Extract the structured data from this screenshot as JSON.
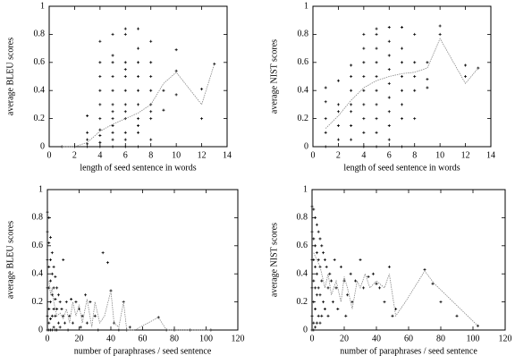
{
  "chart_data": [
    {
      "type": "scatter",
      "xlabel": "length of seed sentence in words",
      "ylabel": "average BLEU scores",
      "xlim": [
        0,
        14
      ],
      "ylim": [
        0,
        1
      ],
      "xticks": [
        0,
        2,
        4,
        6,
        8,
        10,
        12,
        14
      ],
      "yticks": [
        0,
        0.2,
        0.4,
        0.6,
        0.8,
        1
      ],
      "series": [
        {
          "type": "scatter",
          "color": "#000000",
          "x": [
            1,
            2,
            3,
            3,
            3,
            3,
            3,
            4,
            4,
            4,
            4,
            4,
            4,
            4,
            4,
            4,
            4,
            5,
            5,
            5,
            5,
            5,
            5,
            5,
            5,
            5,
            5,
            5,
            5,
            6,
            6,
            6,
            6,
            6,
            6,
            6,
            6,
            6,
            6,
            6,
            6,
            7,
            7,
            7,
            7,
            7,
            7,
            7,
            7,
            7,
            7,
            8,
            8,
            8,
            8,
            8,
            8,
            8,
            8,
            9,
            9,
            10,
            10,
            10,
            12,
            12,
            13
          ],
          "values": [
            0,
            0,
            0,
            0.02,
            0.05,
            0.1,
            0.22,
            0,
            0.03,
            0.08,
            0.12,
            0.2,
            0.3,
            0.4,
            0.5,
            0.6,
            0.75,
            0,
            0.05,
            0.1,
            0.15,
            0.2,
            0.25,
            0.3,
            0.4,
            0.5,
            0.6,
            0.65,
            0.8,
            0,
            0.05,
            0.1,
            0.2,
            0.25,
            0.3,
            0.4,
            0.5,
            0.55,
            0.6,
            0.8,
            0.84,
            0,
            0.1,
            0.15,
            0.2,
            0.3,
            0.4,
            0.5,
            0.6,
            0.7,
            0.84,
            0.05,
            0.2,
            0.25,
            0.3,
            0.4,
            0.5,
            0.6,
            0.75,
            0.4,
            0.26,
            0.37,
            0.54,
            0.69,
            0.2,
            0.41,
            0.59
          ]
        },
        {
          "type": "line",
          "color": "#888888",
          "x": [
            1,
            2,
            3,
            4,
            5,
            6,
            7,
            8,
            9,
            10,
            12,
            13
          ],
          "values": [
            0,
            0,
            0.03,
            0.11,
            0.16,
            0.2,
            0.24,
            0.3,
            0.45,
            0.53,
            0.3,
            0.59
          ]
        }
      ]
    },
    {
      "type": "scatter",
      "xlabel": "length of seed sentence in words",
      "ylabel": "average NIST scores",
      "xlim": [
        0,
        14
      ],
      "ylim": [
        0,
        1
      ],
      "xticks": [
        0,
        2,
        4,
        6,
        8,
        10,
        12,
        14
      ],
      "yticks": [
        0,
        0.2,
        0.4,
        0.6,
        0.8,
        1
      ],
      "series": [
        {
          "type": "scatter",
          "color": "#000000",
          "x": [
            1,
            1,
            1,
            1,
            1,
            2,
            2,
            2,
            2,
            2,
            3,
            3,
            3,
            3,
            3,
            3,
            3,
            4,
            4,
            4,
            4,
            4,
            4,
            4,
            4,
            4,
            5,
            5,
            5,
            5,
            5,
            5,
            5,
            5,
            5,
            5,
            6,
            6,
            6,
            6,
            6,
            6,
            6,
            6,
            6,
            7,
            7,
            7,
            7,
            7,
            7,
            7,
            7,
            8,
            8,
            8,
            8,
            8,
            9,
            9,
            9,
            10,
            10,
            12,
            12,
            13
          ],
          "values": [
            0,
            0.1,
            0.2,
            0.32,
            0.42,
            0.05,
            0.15,
            0.25,
            0.3,
            0.47,
            0.05,
            0.15,
            0.25,
            0.3,
            0.4,
            0.5,
            0.58,
            0,
            0.1,
            0.2,
            0.3,
            0.4,
            0.5,
            0.6,
            0.7,
            0.8,
            0,
            0.1,
            0.2,
            0.3,
            0.4,
            0.5,
            0.6,
            0.7,
            0.8,
            0.84,
            0.05,
            0.15,
            0.25,
            0.35,
            0.45,
            0.55,
            0.65,
            0.75,
            0.85,
            0,
            0.2,
            0.3,
            0.4,
            0.5,
            0.6,
            0.7,
            0.85,
            0.2,
            0.4,
            0.5,
            0.6,
            0.8,
            0.42,
            0.48,
            0.6,
            0.8,
            0.86,
            0.5,
            0.58,
            0.56
          ]
        },
        {
          "type": "line",
          "color": "#888888",
          "x": [
            1,
            2,
            3,
            4,
            5,
            6,
            7,
            8,
            9,
            10,
            12,
            13
          ],
          "values": [
            0.13,
            0.22,
            0.33,
            0.42,
            0.47,
            0.5,
            0.52,
            0.53,
            0.56,
            0.77,
            0.45,
            0.56
          ]
        }
      ]
    },
    {
      "type": "scatter",
      "xlabel": "number of paraphrases / seed sentence",
      "ylabel": "average BLEU scores",
      "xlim": [
        0,
        120
      ],
      "ylim": [
        0,
        1
      ],
      "xticks": [
        0,
        20,
        40,
        60,
        80,
        100,
        120
      ],
      "yticks": [
        0,
        0.2,
        0.4,
        0.6,
        0.8,
        1
      ],
      "series": [
        {
          "type": "scatter",
          "color": "#000000",
          "x": [
            0,
            0,
            0,
            0,
            0,
            0,
            1,
            1,
            1,
            1,
            1,
            1,
            1,
            2,
            2,
            2,
            2,
            2,
            2,
            3,
            3,
            3,
            3,
            3,
            4,
            4,
            4,
            4,
            5,
            5,
            5,
            5,
            6,
            6,
            6,
            7,
            7,
            8,
            8,
            9,
            10,
            10,
            11,
            12,
            13,
            14,
            15,
            16,
            18,
            20,
            21,
            22,
            24,
            25,
            27,
            30,
            32,
            35,
            38,
            40,
            42,
            45,
            48,
            50,
            52,
            70,
            75,
            80,
            90,
            103
          ],
          "values": [
            0.84,
            0.7,
            0.5,
            0.3,
            0.1,
            0,
            0.8,
            0.62,
            0.45,
            0.3,
            0.15,
            0.05,
            0,
            0.66,
            0.5,
            0.35,
            0.2,
            0.08,
            0,
            0.55,
            0.4,
            0.25,
            0.1,
            0,
            0.45,
            0.3,
            0.15,
            0.02,
            0.38,
            0.22,
            0.1,
            0,
            0.3,
            0.15,
            0,
            0.25,
            0.05,
            0.2,
            0.02,
            0.15,
            0.5,
            0.1,
            0.05,
            0.2,
            0,
            0.1,
            0.22,
            0.05,
            0.2,
            0.15,
            0.02,
            0.1,
            0.25,
            0.05,
            0.2,
            0.1,
            0,
            0.55,
            0.48,
            0.28,
            0.05,
            0,
            0.2,
            0,
            0.02,
            0.09,
            0,
            0,
            0,
            0
          ]
        },
        {
          "type": "line",
          "color": "#888888",
          "x": [
            1,
            2,
            3,
            4,
            5,
            6,
            8,
            10,
            12,
            14,
            16,
            18,
            20,
            22,
            25,
            28,
            30,
            33,
            36,
            40,
            42,
            45,
            48,
            50,
            55,
            70,
            75,
            80,
            100,
            103
          ],
          "values": [
            0.35,
            0.25,
            0.3,
            0.2,
            0.15,
            0.1,
            0.12,
            0.08,
            0.15,
            0.05,
            0.2,
            0.1,
            0.18,
            0.05,
            0.22,
            0.02,
            0.2,
            0.05,
            0.1,
            0.28,
            0.05,
            0.02,
            0.2,
            0,
            0,
            0.09,
            0,
            0,
            0,
            0
          ]
        }
      ]
    },
    {
      "type": "scatter",
      "xlabel": "number of paraphrases / seed sentence",
      "ylabel": "average NIST scores",
      "xlim": [
        0,
        120
      ],
      "ylim": [
        0,
        1
      ],
      "xticks": [
        0,
        20,
        40,
        60,
        80,
        100,
        120
      ],
      "yticks": [
        0,
        0.2,
        0.4,
        0.6,
        0.8,
        1
      ],
      "series": [
        {
          "type": "scatter",
          "color": "#000000",
          "x": [
            0,
            0,
            0,
            0,
            0,
            0,
            1,
            1,
            1,
            1,
            1,
            1,
            1,
            2,
            2,
            2,
            2,
            2,
            2,
            3,
            3,
            3,
            3,
            3,
            4,
            4,
            4,
            4,
            5,
            5,
            5,
            5,
            6,
            6,
            6,
            7,
            7,
            8,
            8,
            9,
            10,
            10,
            11,
            12,
            13,
            14,
            15,
            16,
            18,
            20,
            21,
            22,
            24,
            25,
            27,
            30,
            32,
            35,
            38,
            40,
            42,
            45,
            48,
            50,
            52,
            70,
            75,
            80,
            90,
            103
          ],
          "values": [
            0.88,
            0.7,
            0.5,
            0.3,
            0.1,
            0,
            0.86,
            0.65,
            0.5,
            0.35,
            0.2,
            0.05,
            0,
            0.8,
            0.6,
            0.45,
            0.3,
            0.15,
            0.02,
            0.75,
            0.55,
            0.4,
            0.25,
            0.05,
            0.7,
            0.5,
            0.3,
            0.1,
            0.65,
            0.45,
            0.25,
            0.05,
            0.6,
            0.35,
            0.1,
            0.55,
            0.2,
            0.5,
            0.15,
            0.45,
            0.3,
            0.1,
            0.4,
            0.35,
            0.2,
            0.5,
            0.3,
            0.15,
            0.45,
            0.35,
            0.1,
            0.25,
            0.4,
            0.2,
            0.35,
            0.5,
            0.3,
            0.38,
            0.4,
            0.33,
            0.3,
            0.2,
            0.45,
            0.1,
            0.15,
            0.43,
            0.33,
            0.2,
            0.1,
            0.03
          ]
        },
        {
          "type": "line",
          "color": "#888888",
          "x": [
            1,
            3,
            5,
            8,
            10,
            12,
            15,
            18,
            20,
            22,
            25,
            28,
            30,
            33,
            36,
            40,
            45,
            48,
            52,
            58,
            70,
            76,
            103
          ],
          "values": [
            0.55,
            0.5,
            0.45,
            0.3,
            0.4,
            0.25,
            0.35,
            0.2,
            0.38,
            0.3,
            0.15,
            0.35,
            0.3,
            0.4,
            0.3,
            0.35,
            0.3,
            0.4,
            0.1,
            0.2,
            0.42,
            0.33,
            0.03
          ]
        }
      ]
    }
  ]
}
